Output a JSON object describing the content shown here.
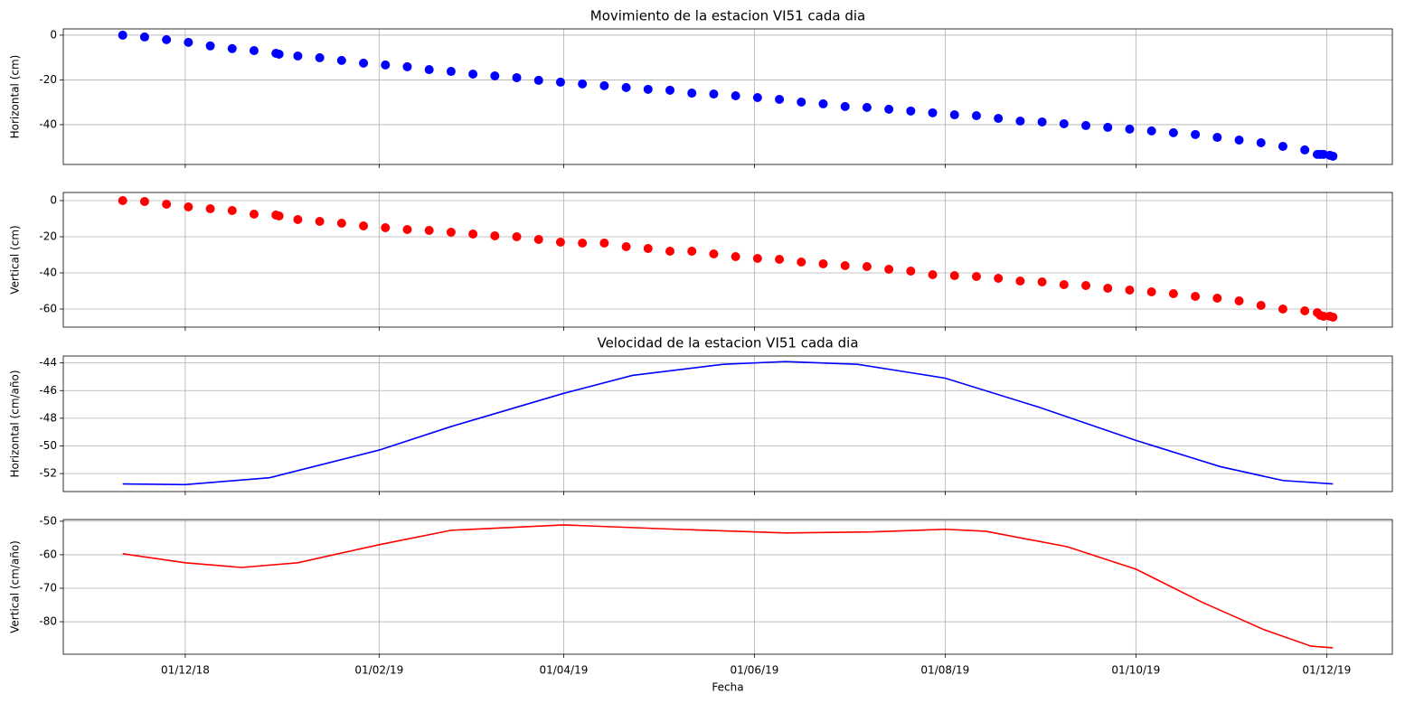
{
  "chart_data": [
    {
      "type": "scatter",
      "title": "Movimiento de la estacion VI51 cada dia",
      "ylabel": "Horizontal (cm)",
      "color": "#0000ff",
      "grid": true,
      "x": [
        "2018-11-11",
        "2018-11-18",
        "2018-11-25",
        "2018-12-02",
        "2018-12-09",
        "2018-12-16",
        "2018-12-23",
        "2018-12-30",
        "2018-12-31",
        "2019-01-06",
        "2019-01-13",
        "2019-01-20",
        "2019-01-27",
        "2019-02-03",
        "2019-02-10",
        "2019-02-17",
        "2019-02-24",
        "2019-03-03",
        "2019-03-10",
        "2019-03-17",
        "2019-03-24",
        "2019-03-31",
        "2019-04-07",
        "2019-04-14",
        "2019-04-21",
        "2019-04-28",
        "2019-05-05",
        "2019-05-12",
        "2019-05-19",
        "2019-05-26",
        "2019-06-02",
        "2019-06-09",
        "2019-06-16",
        "2019-06-23",
        "2019-06-30",
        "2019-07-07",
        "2019-07-14",
        "2019-07-21",
        "2019-07-28",
        "2019-08-04",
        "2019-08-11",
        "2019-08-18",
        "2019-08-25",
        "2019-09-01",
        "2019-09-08",
        "2019-09-15",
        "2019-09-22",
        "2019-09-29",
        "2019-10-06",
        "2019-10-13",
        "2019-10-20",
        "2019-10-27",
        "2019-11-03",
        "2019-11-10",
        "2019-11-17",
        "2019-11-24",
        "2019-11-28",
        "2019-11-29",
        "2019-11-30",
        "2019-12-02",
        "2019-12-03"
      ],
      "values": [
        0,
        -0.8,
        -2,
        -3.2,
        -4.8,
        -6,
        -6.9,
        -8.1,
        -8.5,
        -9.3,
        -10.1,
        -11.3,
        -12.5,
        -13.3,
        -14.1,
        -15.4,
        -16.2,
        -17.4,
        -18.2,
        -19,
        -20.2,
        -21,
        -21.8,
        -22.6,
        -23.4,
        -24.2,
        -24.6,
        -25.9,
        -26.3,
        -27.1,
        -27.9,
        -28.7,
        -29.9,
        -30.7,
        -31.9,
        -32.3,
        -33.1,
        -33.9,
        -34.7,
        -35.6,
        -36,
        -37.2,
        -38.4,
        -38.8,
        -39.6,
        -40.4,
        -41.2,
        -42,
        -42.8,
        -43.6,
        -44.4,
        -45.7,
        -46.9,
        -48.1,
        -49.7,
        -51.3,
        -53.3,
        -53.3,
        -53.3,
        -53.7,
        -54.1
      ],
      "ylim": [
        -57.8,
        2.8
      ],
      "yticks": [
        -40,
        -20,
        0
      ]
    },
    {
      "type": "scatter",
      "ylabel": "Vertical (cm)",
      "color": "#ff0000",
      "grid": true,
      "x": [
        "2018-11-11",
        "2018-11-18",
        "2018-11-25",
        "2018-12-02",
        "2018-12-09",
        "2018-12-16",
        "2018-12-23",
        "2018-12-30",
        "2018-12-31",
        "2019-01-06",
        "2019-01-13",
        "2019-01-20",
        "2019-01-27",
        "2019-02-03",
        "2019-02-10",
        "2019-02-17",
        "2019-02-24",
        "2019-03-03",
        "2019-03-10",
        "2019-03-17",
        "2019-03-24",
        "2019-03-31",
        "2019-04-07",
        "2019-04-14",
        "2019-04-21",
        "2019-04-28",
        "2019-05-05",
        "2019-05-12",
        "2019-05-19",
        "2019-05-26",
        "2019-06-02",
        "2019-06-09",
        "2019-06-16",
        "2019-06-23",
        "2019-06-30",
        "2019-07-07",
        "2019-07-14",
        "2019-07-21",
        "2019-07-28",
        "2019-08-04",
        "2019-08-11",
        "2019-08-18",
        "2019-08-25",
        "2019-09-01",
        "2019-09-08",
        "2019-09-15",
        "2019-09-22",
        "2019-09-29",
        "2019-10-06",
        "2019-10-13",
        "2019-10-20",
        "2019-10-27",
        "2019-11-03",
        "2019-11-10",
        "2019-11-17",
        "2019-11-24",
        "2019-11-28",
        "2019-11-29",
        "2019-11-30",
        "2019-12-02",
        "2019-12-03"
      ],
      "values": [
        0,
        -0.5,
        -2,
        -3.5,
        -4.5,
        -5.5,
        -7.5,
        -8,
        -8.5,
        -10.5,
        -11.5,
        -12.5,
        -14,
        -15,
        -16,
        -16.5,
        -17.5,
        -18.5,
        -19.5,
        -20,
        -21.5,
        -23,
        -23.5,
        -23.5,
        -25.5,
        -26.5,
        -28,
        -28,
        -29.5,
        -31,
        -32,
        -32.5,
        -34,
        -35,
        -36,
        -36.5,
        -38,
        -39,
        -41,
        -41.5,
        -42,
        -43,
        -44.5,
        -45,
        -46.5,
        -47,
        -48.5,
        -49.5,
        -50.5,
        -51.5,
        -53,
        -54,
        -55.5,
        -58,
        -60,
        -61,
        -62,
        -63.5,
        -64,
        -64,
        -64.5
      ],
      "ylim": [
        -70,
        4.5
      ],
      "yticks": [
        -60,
        -40,
        -20,
        0
      ]
    },
    {
      "type": "line",
      "title": "Velocidad de la estacion VI51 cada dia",
      "ylabel": "Horizontal (cm/año)",
      "color": "#0000ff",
      "grid": true,
      "x": [
        "2018-11-11",
        "2018-12-01",
        "2018-12-28",
        "2019-02-01",
        "2019-02-24",
        "2019-04-01",
        "2019-04-23",
        "2019-05-22",
        "2019-06-11",
        "2019-07-04",
        "2019-08-01",
        "2019-08-31",
        "2019-10-01",
        "2019-10-28",
        "2019-11-17",
        "2019-12-03"
      ],
      "values": [
        -52.75,
        -52.8,
        -52.3,
        -50.3,
        -48.6,
        -46.2,
        -44.9,
        -44.1,
        -43.9,
        -44.1,
        -45.1,
        -47.2,
        -49.6,
        -51.5,
        -52.5,
        -52.75
      ],
      "ylim": [
        -53.3,
        -43.5
      ],
      "yticks": [
        -52,
        -50,
        -48,
        -46,
        -44
      ]
    },
    {
      "type": "line",
      "ylabel": "Vertical (cm/año)",
      "xlabel": "Fecha",
      "color": "#ff0000",
      "grid": true,
      "x": [
        "2018-11-11",
        "2018-12-01",
        "2018-12-19",
        "2019-01-06",
        "2019-02-01",
        "2019-02-24",
        "2019-04-01",
        "2019-05-07",
        "2019-06-11",
        "2019-07-08",
        "2019-08-01",
        "2019-08-14",
        "2019-09-09",
        "2019-10-01",
        "2019-10-22",
        "2019-11-11",
        "2019-11-26",
        "2019-12-03"
      ],
      "values": [
        -59.7,
        -62.4,
        -63.8,
        -62.4,
        -57,
        -52.7,
        -51.1,
        -52.4,
        -53.5,
        -53.2,
        -52.4,
        -53,
        -57.6,
        -64.3,
        -74.1,
        -82.4,
        -87.3,
        -87.8
      ],
      "ylim": [
        -89.7,
        -49.5
      ],
      "yticks": [
        -80,
        -70,
        -60,
        -50
      ],
      "xlim": [
        "2018-10-23",
        "2019-12-22"
      ],
      "xticks": [
        {
          "value": "2018-12-01",
          "label": "01/12/18"
        },
        {
          "value": "2019-02-01",
          "label": "01/02/19"
        },
        {
          "value": "2019-04-01",
          "label": "01/04/19"
        },
        {
          "value": "2019-06-01",
          "label": "01/06/19"
        },
        {
          "value": "2019-08-01",
          "label": "01/08/19"
        },
        {
          "value": "2019-10-01",
          "label": "01/10/19"
        },
        {
          "value": "2019-12-01",
          "label": "01/12/19"
        }
      ]
    }
  ]
}
